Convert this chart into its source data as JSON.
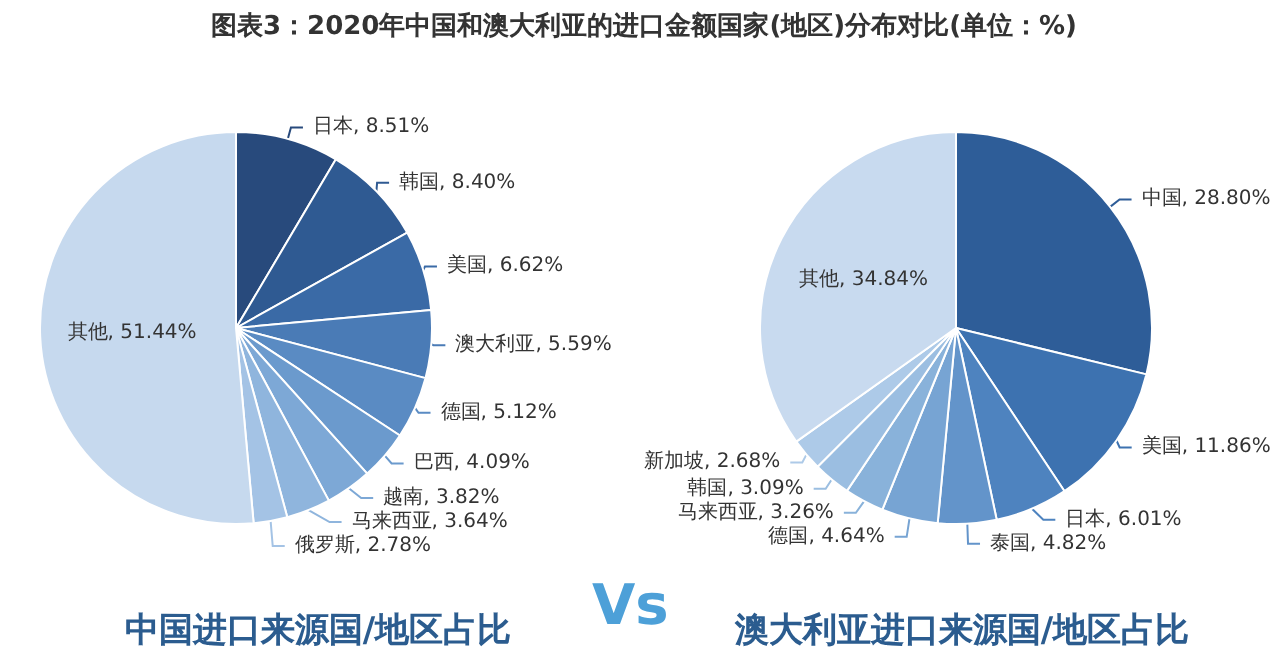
{
  "chart_data": [
    {
      "type": "pie",
      "title": "中国进口来源国/地区占比",
      "annotations": [
        "图表3：2020年中国和澳大利亚的进口金额国家(地区)分布对比(单位：%)"
      ],
      "categories": [
        "日本",
        "韩国",
        "美国",
        "澳大利亚",
        "德国",
        "巴西",
        "越南",
        "马来西亚",
        "俄罗斯",
        "其他"
      ],
      "values": [
        8.51,
        8.4,
        6.62,
        5.59,
        5.12,
        4.09,
        3.82,
        3.64,
        2.78,
        51.44
      ],
      "value_labels": [
        "8.51%",
        "8.40%",
        "6.62%",
        "5.59%",
        "5.12%",
        "4.09%",
        "3.82%",
        "3.64%",
        "2.78%",
        "51.44%"
      ],
      "colors": [
        "#284a7c",
        "#2f5a92",
        "#3a6aa6",
        "#4a7bb6",
        "#5a8bc3",
        "#6b9acd",
        "#7da8d6",
        "#8fb5dd",
        "#a4c3e5",
        "#c6d9ee"
      ],
      "legend": false
    },
    {
      "type": "pie",
      "title": "澳大利亚进口来源国/地区占比",
      "annotations": [
        "Vs"
      ],
      "categories": [
        "中国",
        "美国",
        "日本",
        "泰国",
        "德国",
        "马来西亚",
        "韩国",
        "新加坡",
        "其他"
      ],
      "values": [
        28.8,
        11.86,
        6.01,
        4.82,
        4.64,
        3.26,
        3.09,
        2.68,
        34.84
      ],
      "value_labels": [
        "28.80%",
        "11.86%",
        "6.01%",
        "4.82%",
        "4.64%",
        "3.26%",
        "3.09%",
        "2.68%",
        "34.84%"
      ],
      "colors": [
        "#2e5d98",
        "#3d72b0",
        "#4e83bf",
        "#6394ca",
        "#77a4d3",
        "#89b2da",
        "#9bbee1",
        "#adcae8",
        "#c8daef"
      ],
      "legend": false
    }
  ]
}
